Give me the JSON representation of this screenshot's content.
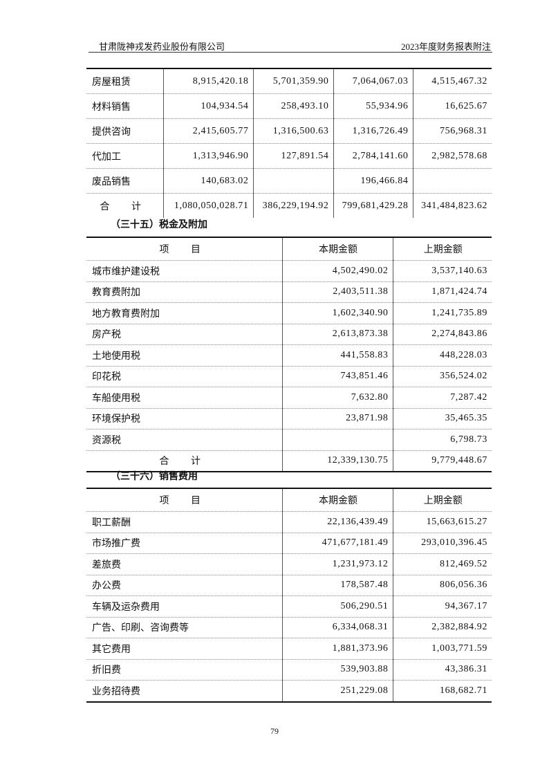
{
  "header": {
    "company": "甘肃陇神戎发药业股份有限公司",
    "report": "2023年度财务报表附注"
  },
  "table_top": {
    "rows": [
      [
        "房屋租赁",
        "8,915,420.18",
        "5,701,359.90",
        "7,064,067.03",
        "4,515,467.32"
      ],
      [
        "材料销售",
        "104,934.54",
        "258,493.10",
        "55,934.96",
        "16,625.67"
      ],
      [
        "提供咨询",
        "2,415,605.77",
        "1,316,500.63",
        "1,316,726.49",
        "756,968.31"
      ],
      [
        "代加工",
        "1,313,946.90",
        "127,891.54",
        "2,784,141.60",
        "2,982,578.68"
      ],
      [
        "废品销售",
        "140,683.02",
        "",
        "196,466.84",
        ""
      ]
    ],
    "total": [
      "合 计",
      "1,080,050,028.71",
      "386,229,194.92",
      "799,681,429.28",
      "341,484,823.62"
    ]
  },
  "section35": {
    "title": "（三十五）税金及附加",
    "headers": [
      "项 目",
      "本期金额",
      "上期金额"
    ],
    "rows": [
      [
        "城市维护建设税",
        "4,502,490.02",
        "3,537,140.63"
      ],
      [
        "教育费附加",
        "2,403,511.38",
        "1,871,424.74"
      ],
      [
        "地方教育费附加",
        "1,602,340.90",
        "1,241,735.89"
      ],
      [
        "房产税",
        "2,613,873.38",
        "2,274,843.86"
      ],
      [
        "土地使用税",
        "441,558.83",
        "448,228.03"
      ],
      [
        "印花税",
        "743,851.46",
        "356,524.02"
      ],
      [
        "车船使用税",
        "7,632.80",
        "7,287.42"
      ],
      [
        "环境保护税",
        "23,871.98",
        "35,465.35"
      ],
      [
        "资源税",
        "",
        "6,798.73"
      ]
    ],
    "total": [
      "合 计",
      "12,339,130.75",
      "9,779,448.67"
    ]
  },
  "section36": {
    "title": "（三十六）销售费用",
    "headers": [
      "项 目",
      "本期金额",
      "上期金额"
    ],
    "rows": [
      [
        "职工薪酬",
        "22,136,439.49",
        "15,663,615.27"
      ],
      [
        "市场推广费",
        "471,677,181.49",
        "293,010,396.45"
      ],
      [
        "差旅费",
        "1,231,973.12",
        "812,469.52"
      ],
      [
        "办公费",
        "178,587.48",
        "806,056.36"
      ],
      [
        "车辆及运杂费用",
        "506,290.51",
        "94,367.17"
      ],
      [
        "广告、印刷、咨询费等",
        "6,334,068.31",
        "2,382,884.92"
      ],
      [
        "其它费用",
        "1,881,373.96",
        "1,003,771.59"
      ],
      [
        "折旧费",
        "539,903.88",
        "43,386.31"
      ],
      [
        "业务招待费",
        "251,229.08",
        "168,682.71"
      ]
    ]
  },
  "page_number": "79"
}
